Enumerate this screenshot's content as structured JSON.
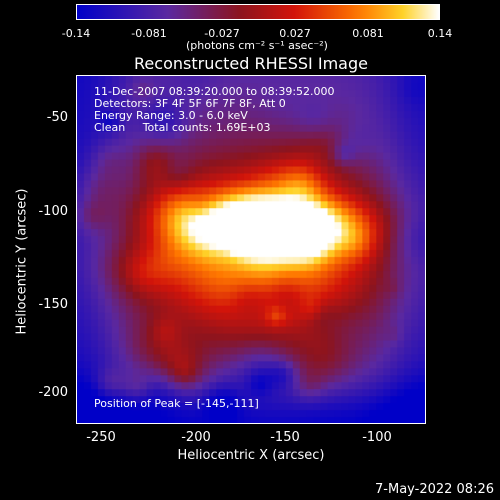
{
  "colorbar": {
    "labels": [
      "-0.14",
      "-0.081",
      "-0.027",
      "0.027",
      "0.081",
      "0.14"
    ],
    "unit_label": "(photons cm⁻² s⁻¹ asec⁻²)"
  },
  "title": "Reconstructed RHESSI Image",
  "info": {
    "line1": "11-Dec-2007 08:39:20.000 to 08:39:52.000",
    "line2": "Detectors: 3F 4F 5F 6F 7F 8F, Att 0",
    "line3": "Energy Range: 3.0 - 6.0 keV",
    "line4": "Clean     Total counts: 1.69E+03",
    "peak": "Position of Peak = [-145,-111]"
  },
  "axes": {
    "xlabel": "Heliocentric X (arcsec)",
    "ylabel": "Heliocentric Y (arcsec)",
    "xticks": [
      "-250",
      "-200",
      "-150",
      "-100"
    ],
    "yticks": [
      "-50",
      "-100",
      "-150",
      "-200"
    ]
  },
  "footer": {
    "timestamp": "7-May-2022 08:26"
  }
}
